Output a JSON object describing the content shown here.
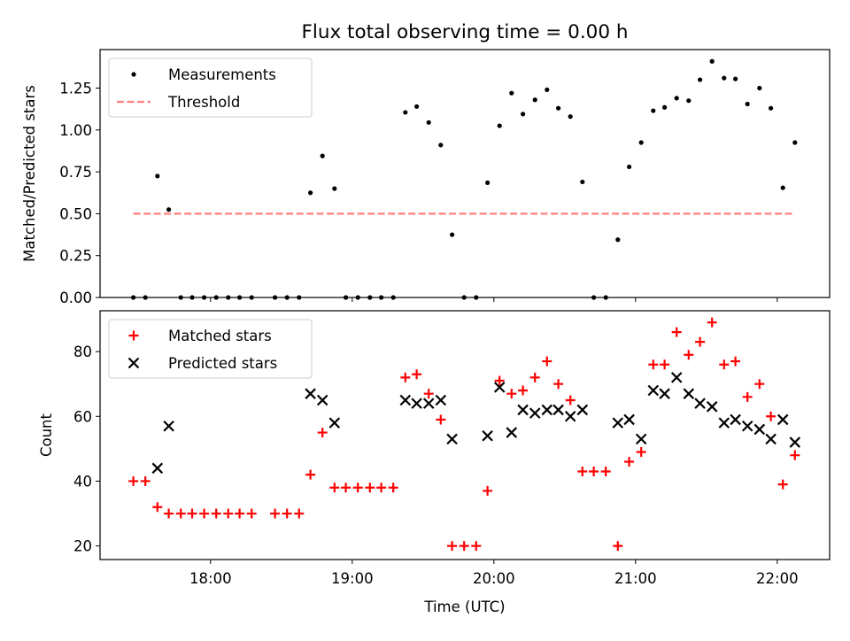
{
  "chart_data": [
    {
      "type": "scatter",
      "title": "Flux total observing time = 0.00 h",
      "xlabel": "",
      "ylabel": "Matched/Predicted stars",
      "ylim": [
        0,
        1.48
      ],
      "yticks": [
        "0.00",
        "0.25",
        "0.50",
        "0.75",
        "1.00",
        "1.25"
      ],
      "ytick_values": [
        0,
        0.25,
        0.5,
        0.75,
        1.0,
        1.25
      ],
      "xlim_hours": [
        17.22,
        22.37
      ],
      "legend_position": "top-left",
      "series": [
        {
          "name": "Measurements",
          "marker": "dot",
          "color": "#000000",
          "points": [
            [
              17.455,
              0
            ],
            [
              17.54,
              0
            ],
            [
              17.625,
              0.725
            ],
            [
              17.705,
              0.525
            ],
            [
              17.79,
              0
            ],
            [
              17.87,
              0
            ],
            [
              17.955,
              0
            ],
            [
              18.04,
              0
            ],
            [
              18.125,
              0
            ],
            [
              18.205,
              0
            ],
            [
              18.29,
              0
            ],
            [
              18.455,
              0
            ],
            [
              18.54,
              0
            ],
            [
              18.625,
              0
            ],
            [
              18.705,
              0.625
            ],
            [
              18.79,
              0.845
            ],
            [
              18.875,
              0.65
            ],
            [
              18.955,
              0
            ],
            [
              19.04,
              0
            ],
            [
              19.125,
              0
            ],
            [
              19.205,
              0
            ],
            [
              19.29,
              0
            ],
            [
              19.375,
              1.105
            ],
            [
              19.455,
              1.14
            ],
            [
              19.54,
              1.045
            ],
            [
              19.625,
              0.91
            ],
            [
              19.705,
              0.375
            ],
            [
              19.79,
              0
            ],
            [
              19.875,
              0
            ],
            [
              19.955,
              0.685
            ],
            [
              20.04,
              1.025
            ],
            [
              20.125,
              1.22
            ],
            [
              20.205,
              1.095
            ],
            [
              20.29,
              1.18
            ],
            [
              20.375,
              1.24
            ],
            [
              20.455,
              1.13
            ],
            [
              20.54,
              1.08
            ],
            [
              20.625,
              0.69
            ],
            [
              20.705,
              0
            ],
            [
              20.79,
              0
            ],
            [
              20.875,
              0.345
            ],
            [
              20.955,
              0.78
            ],
            [
              21.04,
              0.925
            ],
            [
              21.125,
              1.115
            ],
            [
              21.205,
              1.135
            ],
            [
              21.29,
              1.19
            ],
            [
              21.375,
              1.175
            ],
            [
              21.455,
              1.3
            ],
            [
              21.54,
              1.41
            ],
            [
              21.625,
              1.31
            ],
            [
              21.705,
              1.305
            ],
            [
              21.79,
              1.155
            ],
            [
              21.875,
              1.25
            ],
            [
              21.955,
              1.13
            ],
            [
              22.04,
              0.655
            ],
            [
              22.125,
              0.925
            ]
          ]
        },
        {
          "name": "Threshold",
          "marker": "dashed-line",
          "color": "#ff7f7f",
          "points": [
            [
              17.455,
              0.5
            ],
            [
              22.125,
              0.5
            ]
          ]
        }
      ]
    },
    {
      "type": "scatter",
      "title": "",
      "xlabel": "Time (UTC)",
      "ylabel": "Count",
      "ylim": [
        15.8,
        92.6
      ],
      "yticks": [
        "20",
        "40",
        "60",
        "80"
      ],
      "ytick_values": [
        20,
        40,
        60,
        80
      ],
      "xlim_hours": [
        17.22,
        22.37
      ],
      "xticks": [
        "18:00",
        "19:00",
        "20:00",
        "21:00",
        "22:00"
      ],
      "xtick_values": [
        18,
        19,
        20,
        21,
        22
      ],
      "legend_position": "top-left",
      "series": [
        {
          "name": "Matched stars",
          "marker": "plus",
          "color": "#ff0000",
          "points": [
            [
              17.455,
              40
            ],
            [
              17.54,
              40
            ],
            [
              17.625,
              32
            ],
            [
              17.705,
              30
            ],
            [
              17.79,
              30
            ],
            [
              17.87,
              30
            ],
            [
              17.955,
              30
            ],
            [
              18.04,
              30
            ],
            [
              18.125,
              30
            ],
            [
              18.205,
              30
            ],
            [
              18.29,
              30
            ],
            [
              18.455,
              30
            ],
            [
              18.54,
              30
            ],
            [
              18.625,
              30
            ],
            [
              18.705,
              42
            ],
            [
              18.79,
              55
            ],
            [
              18.875,
              38
            ],
            [
              18.955,
              38
            ],
            [
              19.04,
              38
            ],
            [
              19.125,
              38
            ],
            [
              19.205,
              38
            ],
            [
              19.29,
              38
            ],
            [
              19.375,
              72
            ],
            [
              19.455,
              73
            ],
            [
              19.54,
              67
            ],
            [
              19.625,
              59
            ],
            [
              19.705,
              20
            ],
            [
              19.79,
              20
            ],
            [
              19.875,
              20
            ],
            [
              19.955,
              37
            ],
            [
              20.04,
              71
            ],
            [
              20.125,
              67
            ],
            [
              20.205,
              68
            ],
            [
              20.29,
              72
            ],
            [
              20.375,
              77
            ],
            [
              20.455,
              70
            ],
            [
              20.54,
              65
            ],
            [
              20.625,
              43
            ],
            [
              20.705,
              43
            ],
            [
              20.79,
              43
            ],
            [
              20.875,
              20
            ],
            [
              20.955,
              46
            ],
            [
              21.04,
              49
            ],
            [
              21.125,
              76
            ],
            [
              21.205,
              76
            ],
            [
              21.29,
              86
            ],
            [
              21.375,
              79
            ],
            [
              21.455,
              83
            ],
            [
              21.54,
              89
            ],
            [
              21.625,
              76
            ],
            [
              21.705,
              77
            ],
            [
              21.79,
              66
            ],
            [
              21.875,
              70
            ],
            [
              21.955,
              60
            ],
            [
              22.04,
              39
            ],
            [
              22.125,
              48
            ]
          ]
        },
        {
          "name": "Predicted stars",
          "marker": "x",
          "color": "#000000",
          "points": [
            [
              17.625,
              44
            ],
            [
              17.705,
              57
            ],
            [
              18.705,
              67
            ],
            [
              18.79,
              65
            ],
            [
              18.875,
              58
            ],
            [
              19.375,
              65
            ],
            [
              19.455,
              64
            ],
            [
              19.54,
              64
            ],
            [
              19.625,
              65
            ],
            [
              19.705,
              53
            ],
            [
              19.955,
              54
            ],
            [
              20.04,
              69
            ],
            [
              20.125,
              55
            ],
            [
              20.205,
              62
            ],
            [
              20.29,
              61
            ],
            [
              20.375,
              62
            ],
            [
              20.455,
              62
            ],
            [
              20.54,
              60
            ],
            [
              20.625,
              62
            ],
            [
              20.875,
              58
            ],
            [
              20.955,
              59
            ],
            [
              21.04,
              53
            ],
            [
              21.125,
              68
            ],
            [
              21.205,
              67
            ],
            [
              21.29,
              72
            ],
            [
              21.375,
              67
            ],
            [
              21.455,
              64
            ],
            [
              21.54,
              63
            ],
            [
              21.625,
              58
            ],
            [
              21.705,
              59
            ],
            [
              21.79,
              57
            ],
            [
              21.875,
              56
            ],
            [
              21.955,
              53
            ],
            [
              22.04,
              59
            ],
            [
              22.125,
              52
            ]
          ]
        }
      ]
    }
  ]
}
